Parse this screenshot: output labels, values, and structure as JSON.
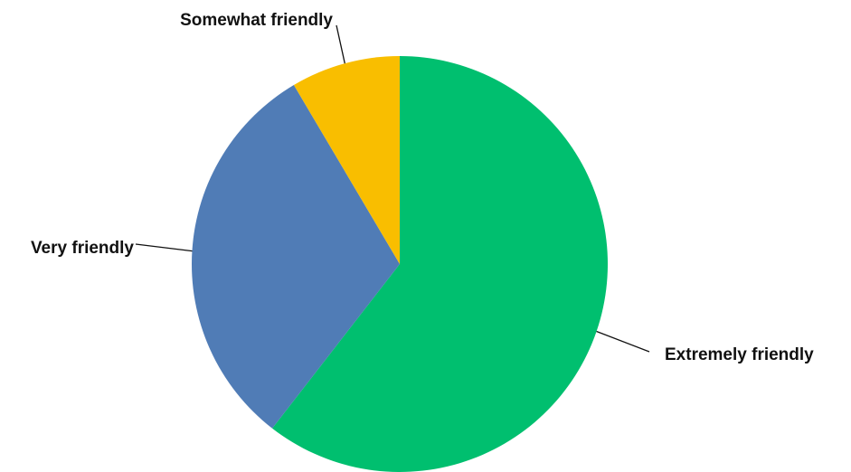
{
  "chart_data": {
    "type": "pie",
    "title": "",
    "start_angle_deg": 0,
    "direction": "clockwise",
    "legend": "none",
    "slices": [
      {
        "label": "Extremely friendly",
        "value": 60.5,
        "color": "#00BF6F"
      },
      {
        "label": "Very friendly",
        "value": 31.0,
        "color": "#507CB6"
      },
      {
        "label": "Somewhat friendly",
        "value": 8.5,
        "color": "#F9BE00"
      }
    ]
  }
}
